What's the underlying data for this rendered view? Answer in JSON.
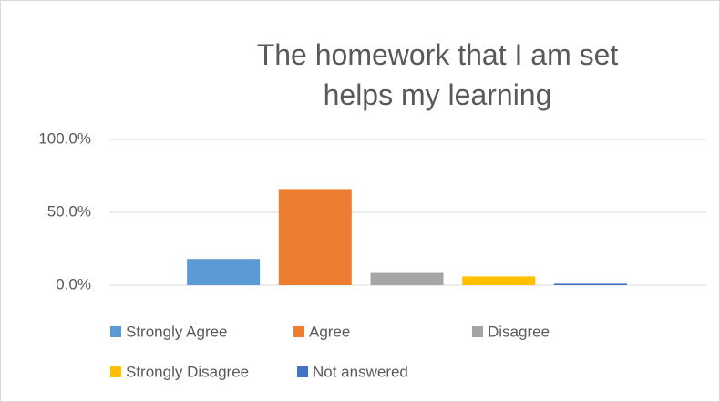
{
  "chart_data": {
    "type": "bar",
    "title": "The homework that I am set helps my learning",
    "series": [
      {
        "name": "Strongly Agree",
        "color": "#5b9bd5",
        "values": [
          18
        ]
      },
      {
        "name": "Agree",
        "color": "#ed7d31",
        "values": [
          66
        ]
      },
      {
        "name": "Disagree",
        "color": "#a5a5a5",
        "values": [
          9
        ]
      },
      {
        "name": "Strongly Disagree",
        "color": "#ffc000",
        "values": [
          6
        ]
      },
      {
        "name": "Not answered",
        "color": "#4472c4",
        "values": [
          1
        ]
      }
    ],
    "ylim": [
      0,
      100
    ],
    "yticks": [
      {
        "value": 0,
        "label": "0.0%"
      },
      {
        "value": 50,
        "label": "50.0%"
      },
      {
        "value": 100,
        "label": "100.0%"
      }
    ],
    "grid": true,
    "legend": "bottom"
  }
}
